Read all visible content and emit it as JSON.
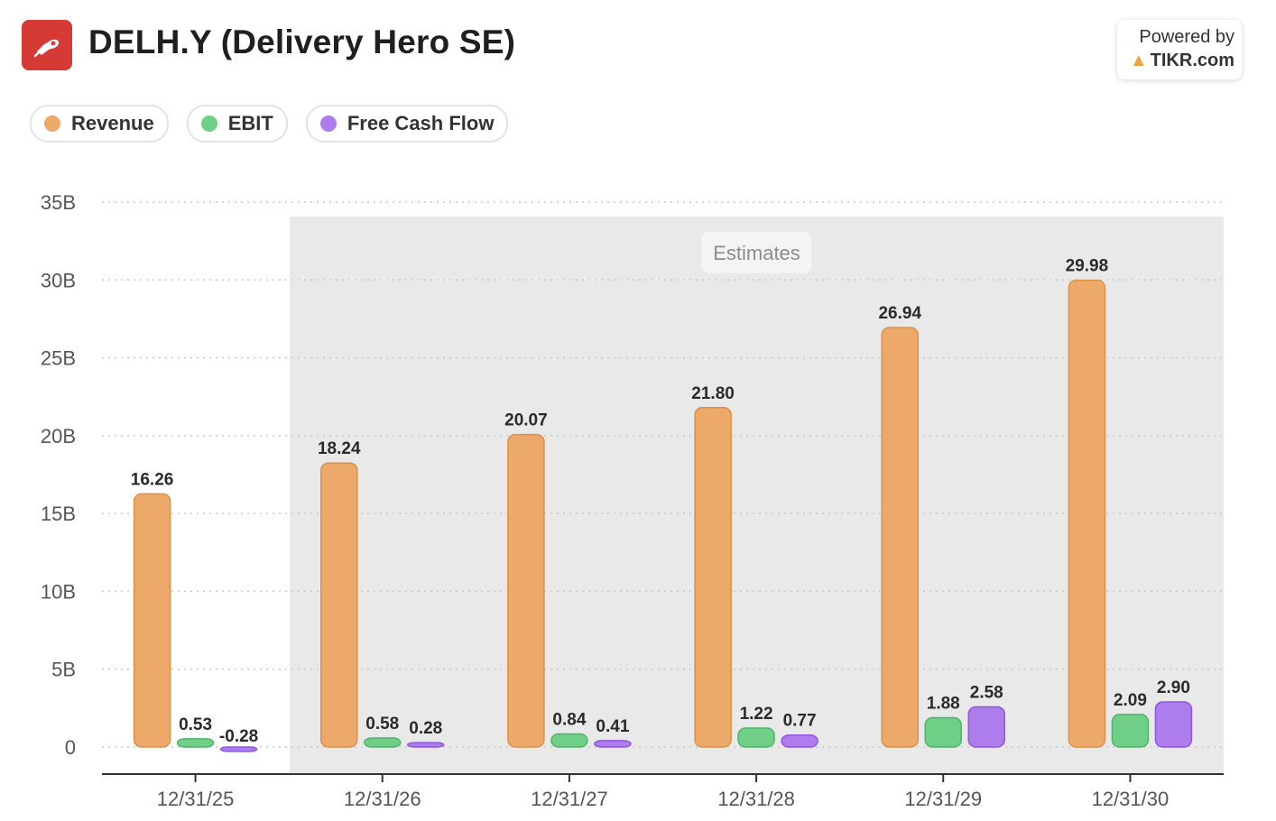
{
  "header": {
    "title": "DELH.Y (Delivery Hero SE)",
    "powered_by": "Powered by",
    "brand": "TIKR.com"
  },
  "legend": [
    {
      "label": "Revenue",
      "color": "#eca96a"
    },
    {
      "label": "EBIT",
      "color": "#6fcf87"
    },
    {
      "label": "Free Cash Flow",
      "color": "#ad7ded"
    }
  ],
  "chart_data": {
    "type": "bar",
    "categories": [
      "12/31/25",
      "12/31/26",
      "12/31/27",
      "12/31/28",
      "12/31/29",
      "12/31/30"
    ],
    "series": [
      {
        "name": "Revenue",
        "color": "#eca96a",
        "values": [
          16.26,
          18.24,
          20.07,
          21.8,
          26.94,
          29.98
        ],
        "labels": [
          "16.26",
          "18.24",
          "20.07",
          "21.80",
          "26.94",
          "29.98"
        ]
      },
      {
        "name": "EBIT",
        "color": "#6fcf87",
        "values": [
          0.53,
          0.58,
          0.84,
          1.22,
          1.88,
          2.09
        ],
        "labels": [
          "0.53",
          "0.58",
          "0.84",
          "1.22",
          "1.88",
          "2.09"
        ]
      },
      {
        "name": "Free Cash Flow",
        "color": "#ad7ded",
        "values": [
          -0.28,
          0.28,
          0.41,
          0.77,
          2.58,
          2.9
        ],
        "labels": [
          "-0.28",
          "0.28",
          "0.41",
          "0.77",
          "2.58",
          "2.90"
        ]
      }
    ],
    "yticks": [
      "0",
      "5B",
      "10B",
      "15B",
      "20B",
      "25B",
      "30B",
      "35B"
    ],
    "ylim": [
      0,
      35
    ],
    "estimates_label": "Estimates",
    "estimates_from_category": 1,
    "grid": true,
    "legend_position": "top-left"
  }
}
